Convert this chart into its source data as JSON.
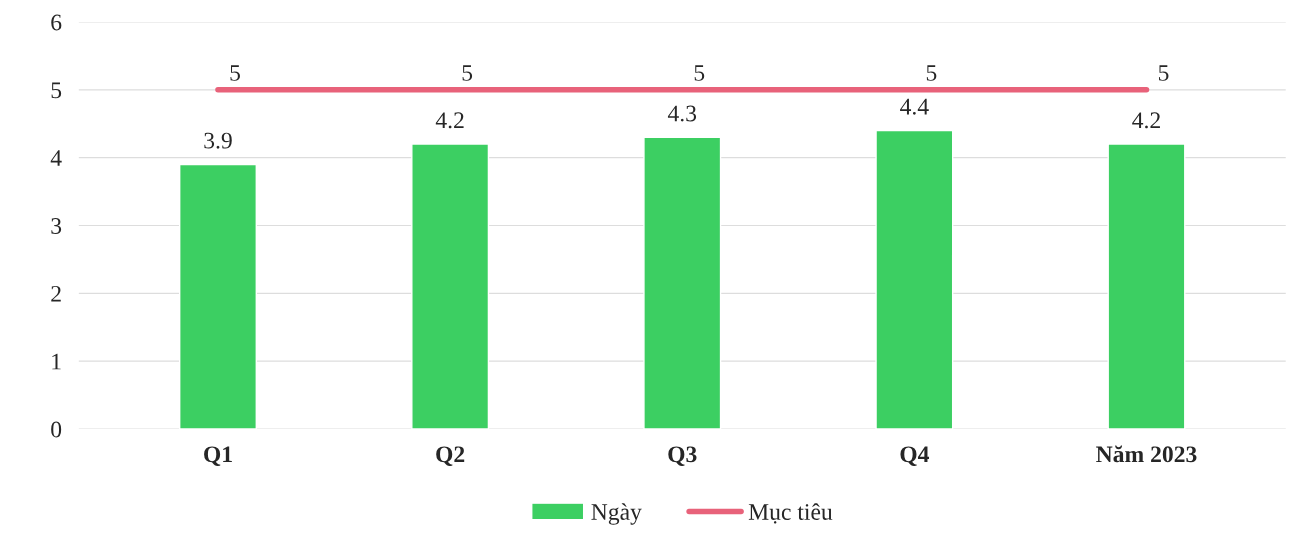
{
  "chart_data": {
    "type": "bar",
    "categories": [
      "Q1",
      "Q2",
      "Q3",
      "Q4",
      "Năm 2023"
    ],
    "series": [
      {
        "name": "Ngày",
        "color": "#3ccf62",
        "values": [
          3.9,
          4.2,
          4.3,
          4.4,
          4.2
        ]
      },
      {
        "name": "Mục tiêu",
        "type": "line",
        "color": "#e8627a",
        "values": [
          5,
          5,
          5,
          5,
          5
        ]
      }
    ],
    "ylim": [
      0,
      6
    ],
    "yticks": [
      0,
      1,
      2,
      3,
      4,
      5,
      6
    ],
    "grid": "y",
    "legend": "bottom",
    "data_labels": true
  }
}
